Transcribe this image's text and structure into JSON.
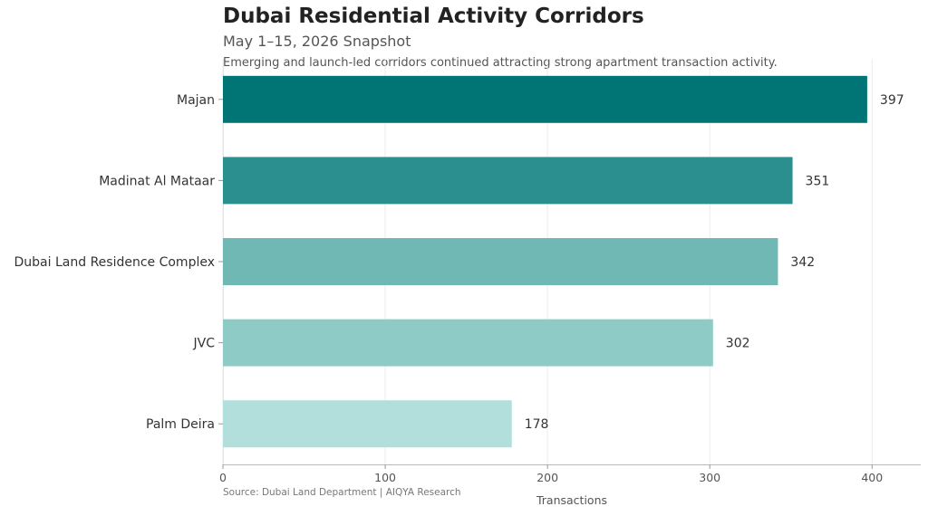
{
  "chart_data": {
    "type": "bar",
    "orientation": "horizontal",
    "title": "Dubai Residential Activity Corridors",
    "subtitle": "May 1–15, 2026 Snapshot",
    "annotation": "Emerging and launch-led corridors continued attracting strong apartment transaction activity.",
    "source": "Source: Dubai Land Department | AIQYA Research",
    "xlabel": "Transactions",
    "ylabel": "",
    "xlim": [
      0,
      430
    ],
    "xticks": [
      0,
      100,
      200,
      300,
      400
    ],
    "grid": "vertical",
    "categories": [
      "Majan",
      "Madinat Al Mataar",
      "Dubai Land Residence Complex",
      "JVC",
      "Palm Deira"
    ],
    "values": [
      397,
      351,
      342,
      302,
      178
    ],
    "colors": [
      "#017575",
      "#2c8f8f",
      "#6fb8b3",
      "#8fcbc6",
      "#b2dfdc"
    ]
  }
}
